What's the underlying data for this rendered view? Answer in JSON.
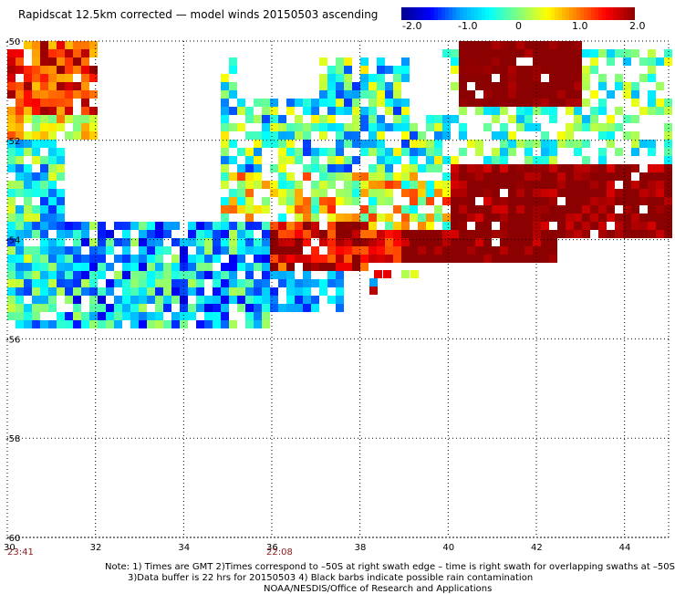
{
  "title": "Rapidscat 12.5km corrected — model winds 20150503 ascending",
  "colorbar": {
    "tick_labels": [
      "-2.0",
      "-1.0",
      "0",
      "1.0",
      "2.0"
    ],
    "tick_values": [
      -2.0,
      -1.0,
      0,
      1.0,
      2.0
    ],
    "range": [
      -2.0,
      2.0
    ],
    "colors": [
      "#00008b",
      "#0000ff",
      "#00a0ff",
      "#00ffff",
      "#80ff80",
      "#ffff00",
      "#ff8000",
      "#ff0000",
      "#8b0000"
    ]
  },
  "axes": {
    "lon_ticks": [
      "30",
      "32",
      "34",
      "36",
      "38",
      "40",
      "42",
      "44"
    ],
    "lon_values": [
      30,
      32,
      34,
      36,
      38,
      40,
      42,
      44
    ],
    "lat_ticks": [
      "-50",
      "-52",
      "-54",
      "-56",
      "-58",
      "-60"
    ],
    "lat_values": [
      -50,
      -52,
      -54,
      -56,
      -58,
      -60
    ],
    "lon_range": [
      30,
      45
    ],
    "lat_range": [
      -50,
      -60
    ]
  },
  "times": [
    {
      "label": "23:41",
      "lon": 30
    },
    {
      "label": "22:08",
      "lon": 36
    }
  ],
  "notes": {
    "line1": "Note: 1) Times are GMT  2)Times correspond to –50S at right swath edge – time is right swath for overlapping swaths at –50S",
    "line2": "3)Data buffer is 22 hrs for 20150503  4) Black barbs indicate possible rain contamination",
    "line3": "NOAA/NESDIS/Office of Research and Applications"
  }
}
